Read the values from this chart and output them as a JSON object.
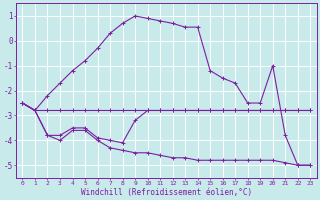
{
  "xlabel": "Windchill (Refroidissement éolien,°C)",
  "background_color": "#c8eaea",
  "grid_color": "#ffffff",
  "line_color": "#7b1fa2",
  "x": [
    0,
    1,
    2,
    3,
    4,
    5,
    6,
    7,
    8,
    9,
    10,
    11,
    12,
    13,
    14,
    15,
    16,
    17,
    18,
    19,
    20,
    21,
    22,
    23
  ],
  "line1": [
    -2.5,
    -2.8,
    -2.8,
    -2.8,
    -2.8,
    -2.8,
    -2.8,
    -2.8,
    -2.8,
    -2.8,
    -2.8,
    -2.8,
    -2.8,
    -2.8,
    -2.8,
    -2.8,
    -2.8,
    -2.8,
    -2.8,
    -2.8,
    -2.8,
    -2.8,
    -2.8,
    -2.8
  ],
  "line2": [
    -2.5,
    -2.8,
    -3.8,
    -3.8,
    -3.5,
    -3.5,
    -3.9,
    -4.0,
    -4.1,
    -3.2,
    -2.8,
    -2.8,
    -2.8,
    -2.8,
    -2.8,
    -2.8,
    -2.8,
    -2.8,
    -2.8,
    -2.8,
    -2.8,
    -2.8,
    -2.8,
    -2.8
  ],
  "line3": [
    -2.5,
    -2.8,
    -3.8,
    -4.0,
    -3.6,
    -3.6,
    -4.0,
    -4.3,
    -4.4,
    -4.5,
    -4.5,
    -4.6,
    -4.7,
    -4.7,
    -4.8,
    -4.8,
    -4.8,
    -4.8,
    -4.8,
    -4.8,
    -4.8,
    -4.9,
    -5.0,
    -5.0
  ],
  "curve": [
    -2.5,
    -2.8,
    -2.2,
    -1.7,
    -1.2,
    -0.8,
    -0.3,
    0.3,
    0.7,
    1.0,
    0.9,
    0.8,
    0.7,
    0.55,
    0.55,
    -1.2,
    -1.5,
    -1.7,
    -2.5,
    -2.5,
    -1.0,
    -3.8,
    -5.0,
    -5.0
  ],
  "ylim": [
    -5.5,
    1.5
  ],
  "yticks": [
    1,
    0,
    -1,
    -2,
    -3,
    -4,
    -5
  ],
  "xlim": [
    -0.5,
    23.5
  ],
  "figsize": [
    3.2,
    2.0
  ],
  "dpi": 100
}
